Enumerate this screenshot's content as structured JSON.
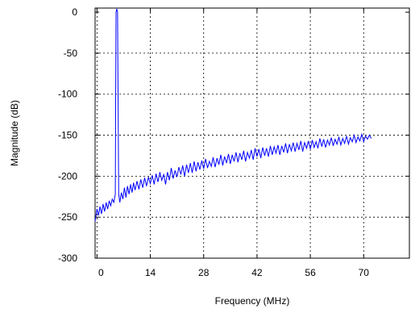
{
  "chart_data": {
    "type": "line",
    "title": "",
    "xlabel": "Frequency (MHz)",
    "ylabel": "Magnitude (dB)",
    "xlim": [
      -0.5,
      82
    ],
    "ylim": [
      -300,
      5
    ],
    "xticks": [
      0,
      14,
      28,
      42,
      56,
      70
    ],
    "yticks": [
      0,
      -50,
      -100,
      -150,
      -200,
      -250,
      -300
    ],
    "grid": true,
    "grid_style": "dashed",
    "series": [
      {
        "color": "#0000ff",
        "points": [
          [
            -0.5,
            -255
          ],
          [
            0.0,
            -240
          ],
          [
            0.4,
            -248
          ],
          [
            0.8,
            -237
          ],
          [
            1.2,
            -246
          ],
          [
            1.6,
            -234
          ],
          [
            2.0,
            -243
          ],
          [
            2.4,
            -232
          ],
          [
            2.8,
            -240
          ],
          [
            3.2,
            -230
          ],
          [
            3.6,
            -236
          ],
          [
            4.0,
            -228
          ],
          [
            4.4,
            -232
          ],
          [
            4.8,
            -222
          ],
          [
            4.9,
            -120
          ],
          [
            5.0,
            0
          ],
          [
            5.2,
            4
          ],
          [
            5.4,
            0
          ],
          [
            5.55,
            -120
          ],
          [
            5.7,
            -222
          ],
          [
            6.0,
            -232
          ],
          [
            6.4,
            -220
          ],
          [
            6.8,
            -228
          ],
          [
            7.2,
            -214
          ],
          [
            7.6,
            -226
          ],
          [
            8.0,
            -212
          ],
          [
            8.4,
            -222
          ],
          [
            8.8,
            -210
          ],
          [
            9.2,
            -220
          ],
          [
            9.6,
            -208
          ],
          [
            10.0,
            -217
          ],
          [
            10.5,
            -206
          ],
          [
            11.0,
            -216
          ],
          [
            11.5,
            -204
          ],
          [
            12.0,
            -214
          ],
          [
            12.5,
            -202
          ],
          [
            13.0,
            -212
          ],
          [
            13.5,
            -201
          ],
          [
            14.0,
            -209
          ],
          [
            14.5,
            -199
          ],
          [
            15.0,
            -210
          ],
          [
            15.5,
            -197
          ],
          [
            16.0,
            -207
          ],
          [
            16.5,
            -195
          ],
          [
            17.0,
            -205
          ],
          [
            17.5,
            -198
          ],
          [
            18.0,
            -210
          ],
          [
            18.5,
            -195
          ],
          [
            19.0,
            -205
          ],
          [
            19.5,
            -190
          ],
          [
            20.0,
            -203
          ],
          [
            20.5,
            -193
          ],
          [
            21.0,
            -201
          ],
          [
            21.5,
            -189
          ],
          [
            22.0,
            -198
          ],
          [
            22.5,
            -187
          ],
          [
            23.0,
            -200
          ],
          [
            23.5,
            -186
          ],
          [
            24.0,
            -196
          ],
          [
            24.5,
            -184
          ],
          [
            25.0,
            -196
          ],
          [
            25.5,
            -182
          ],
          [
            26.0,
            -194
          ],
          [
            26.5,
            -183
          ],
          [
            27.0,
            -192
          ],
          [
            27.5,
            -181
          ],
          [
            28.0,
            -191
          ],
          [
            28.5,
            -179
          ],
          [
            29.0,
            -190
          ],
          [
            29.5,
            -182
          ],
          [
            30.0,
            -188
          ],
          [
            30.5,
            -177
          ],
          [
            31.0,
            -189
          ],
          [
            31.5,
            -178
          ],
          [
            32.0,
            -186
          ],
          [
            32.5,
            -174
          ],
          [
            33.0,
            -187
          ],
          [
            33.5,
            -176
          ],
          [
            34.0,
            -184
          ],
          [
            34.5,
            -173
          ],
          [
            35.0,
            -185
          ],
          [
            35.5,
            -174
          ],
          [
            36.0,
            -182
          ],
          [
            36.5,
            -171
          ],
          [
            37.0,
            -183
          ],
          [
            37.5,
            -172
          ],
          [
            38.0,
            -180
          ],
          [
            38.5,
            -169
          ],
          [
            39.0,
            -182
          ],
          [
            39.5,
            -171
          ],
          [
            40.0,
            -178
          ],
          [
            40.5,
            -168
          ],
          [
            41.0,
            -180
          ],
          [
            41.5,
            -166
          ],
          [
            42.0,
            -176
          ],
          [
            42.5,
            -167
          ],
          [
            43.0,
            -178
          ],
          [
            43.5,
            -165
          ],
          [
            44.0,
            -175
          ],
          [
            44.5,
            -166
          ],
          [
            45.0,
            -176
          ],
          [
            45.5,
            -163
          ],
          [
            46.0,
            -174
          ],
          [
            46.5,
            -164
          ],
          [
            47.0,
            -172
          ],
          [
            47.5,
            -162
          ],
          [
            48.0,
            -174
          ],
          [
            48.5,
            -163
          ],
          [
            49.0,
            -171
          ],
          [
            49.5,
            -160
          ],
          [
            50.0,
            -172
          ],
          [
            50.5,
            -161
          ],
          [
            51.0,
            -169
          ],
          [
            51.5,
            -159
          ],
          [
            52.0,
            -170
          ],
          [
            52.5,
            -160
          ],
          [
            53.0,
            -168
          ],
          [
            53.5,
            -157
          ],
          [
            54.0,
            -170
          ],
          [
            54.5,
            -159
          ],
          [
            55.0,
            -166
          ],
          [
            55.5,
            -157
          ],
          [
            56.0,
            -167
          ],
          [
            56.5,
            -156
          ],
          [
            57.0,
            -165
          ],
          [
            57.5,
            -158
          ],
          [
            58.0,
            -166
          ],
          [
            58.5,
            -154
          ],
          [
            59.0,
            -164
          ],
          [
            59.5,
            -155
          ],
          [
            60.0,
            -165
          ],
          [
            60.5,
            -156
          ],
          [
            61.0,
            -162
          ],
          [
            61.5,
            -153
          ],
          [
            62.0,
            -163
          ],
          [
            62.5,
            -155
          ],
          [
            63.0,
            -161
          ],
          [
            63.5,
            -152
          ],
          [
            64.0,
            -162
          ],
          [
            64.5,
            -154
          ],
          [
            65.0,
            -160
          ],
          [
            65.5,
            -151
          ],
          [
            66.0,
            -161
          ],
          [
            66.5,
            -153
          ],
          [
            67.0,
            -158
          ],
          [
            67.5,
            -150
          ],
          [
            68.0,
            -159
          ],
          [
            68.5,
            -152
          ],
          [
            69.0,
            -157
          ],
          [
            69.5,
            -149
          ],
          [
            70.0,
            -158
          ],
          [
            70.5,
            -151
          ],
          [
            71.0,
            -155
          ],
          [
            71.5,
            -150
          ],
          [
            72.0,
            -154
          ]
        ]
      }
    ]
  }
}
